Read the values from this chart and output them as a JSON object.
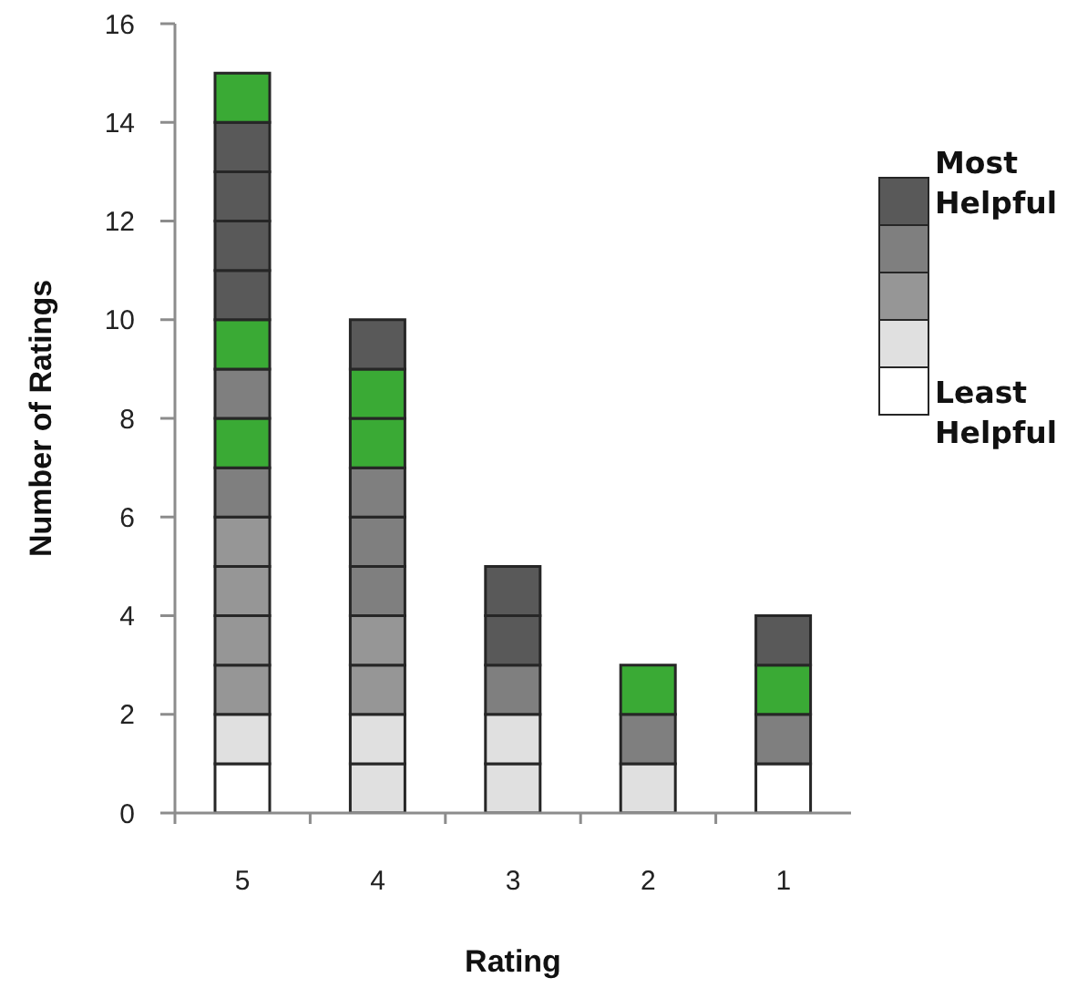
{
  "chart_data": {
    "type": "bar",
    "stacked": true,
    "xlabel": "Rating",
    "ylabel": "Number of Ratings",
    "categories": [
      "5",
      "4",
      "3",
      "2",
      "1"
    ],
    "series": [
      {
        "values": [
          1,
          1,
          1,
          1,
          1
        ],
        "colors": [
          "#ffffff",
          "#e0e0e0",
          "#e0e0e0",
          "#e0e0e0",
          "#ffffff"
        ]
      },
      {
        "values": [
          1,
          1,
          1,
          1,
          1
        ],
        "colors": [
          "#e0e0e0",
          "#e0e0e0",
          "#e0e0e0",
          "#7f7f7f",
          "#7f7f7f"
        ]
      },
      {
        "values": [
          1,
          1,
          1,
          1,
          1
        ],
        "colors": [
          "#969696",
          "#969696",
          "#7f7f7f",
          "#3aaa35",
          "#3aaa35"
        ]
      },
      {
        "values": [
          1,
          1,
          1,
          null,
          1
        ],
        "colors": [
          "#969696",
          "#969696",
          "#595959",
          null,
          "#595959"
        ]
      },
      {
        "values": [
          1,
          1,
          1,
          null,
          null
        ],
        "colors": [
          "#969696",
          "#7f7f7f",
          "#595959",
          null,
          null
        ]
      },
      {
        "values": [
          1,
          1,
          null,
          null,
          null
        ],
        "colors": [
          "#969696",
          "#7f7f7f",
          null,
          null,
          null
        ]
      },
      {
        "values": [
          1,
          1,
          null,
          null,
          null
        ],
        "colors": [
          "#7f7f7f",
          "#7f7f7f",
          null,
          null,
          null
        ]
      },
      {
        "values": [
          1,
          1,
          null,
          null,
          null
        ],
        "colors": [
          "#3aaa35",
          "#3aaa35",
          null,
          null,
          null
        ]
      },
      {
        "values": [
          1,
          1,
          null,
          null,
          null
        ],
        "colors": [
          "#7f7f7f",
          "#3aaa35",
          null,
          null,
          null
        ]
      },
      {
        "values": [
          1,
          1,
          null,
          null,
          null
        ],
        "colors": [
          "#3aaa35",
          "#595959",
          null,
          null,
          null
        ]
      },
      {
        "values": [
          1,
          null,
          null,
          null,
          null
        ],
        "colors": [
          "#595959",
          null,
          null,
          null,
          null
        ]
      },
      {
        "values": [
          1,
          null,
          null,
          null,
          null
        ],
        "colors": [
          "#595959",
          null,
          null,
          null,
          null
        ]
      },
      {
        "values": [
          1,
          null,
          null,
          null,
          null
        ],
        "colors": [
          "#595959",
          null,
          null,
          null,
          null
        ]
      },
      {
        "values": [
          1,
          null,
          null,
          null,
          null
        ],
        "colors": [
          "#595959",
          null,
          null,
          null,
          null
        ]
      },
      {
        "values": [
          1,
          null,
          null,
          null,
          null
        ],
        "colors": [
          "#3aaa35",
          null,
          null,
          null,
          null
        ]
      }
    ],
    "ylim": [
      0,
      16
    ],
    "yticks": [
      0,
      2,
      4,
      6,
      8,
      10,
      12,
      14,
      16
    ],
    "annotations": [
      "Most Helpful",
      "Least Helpful"
    ]
  }
}
